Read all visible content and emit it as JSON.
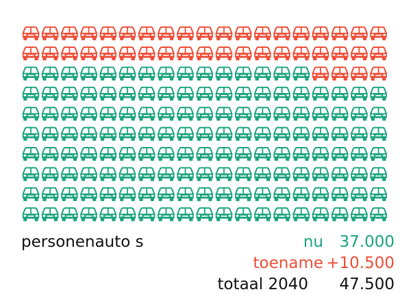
{
  "chart_data": {
    "type": "pictogram",
    "category": "personenauto s",
    "series": [
      {
        "name": "nu",
        "value": 37000,
        "value_label": "37.000",
        "color": "#1aa37e"
      },
      {
        "name": "toename",
        "value": 10500,
        "value_label": "+10.500",
        "color": "#ee4d37"
      }
    ],
    "total": {
      "label": "totaal 2040",
      "value": 47500,
      "value_label": "47.500"
    },
    "units_per_icon": 250,
    "icons_per_row": 19,
    "icon": "car-icon"
  }
}
